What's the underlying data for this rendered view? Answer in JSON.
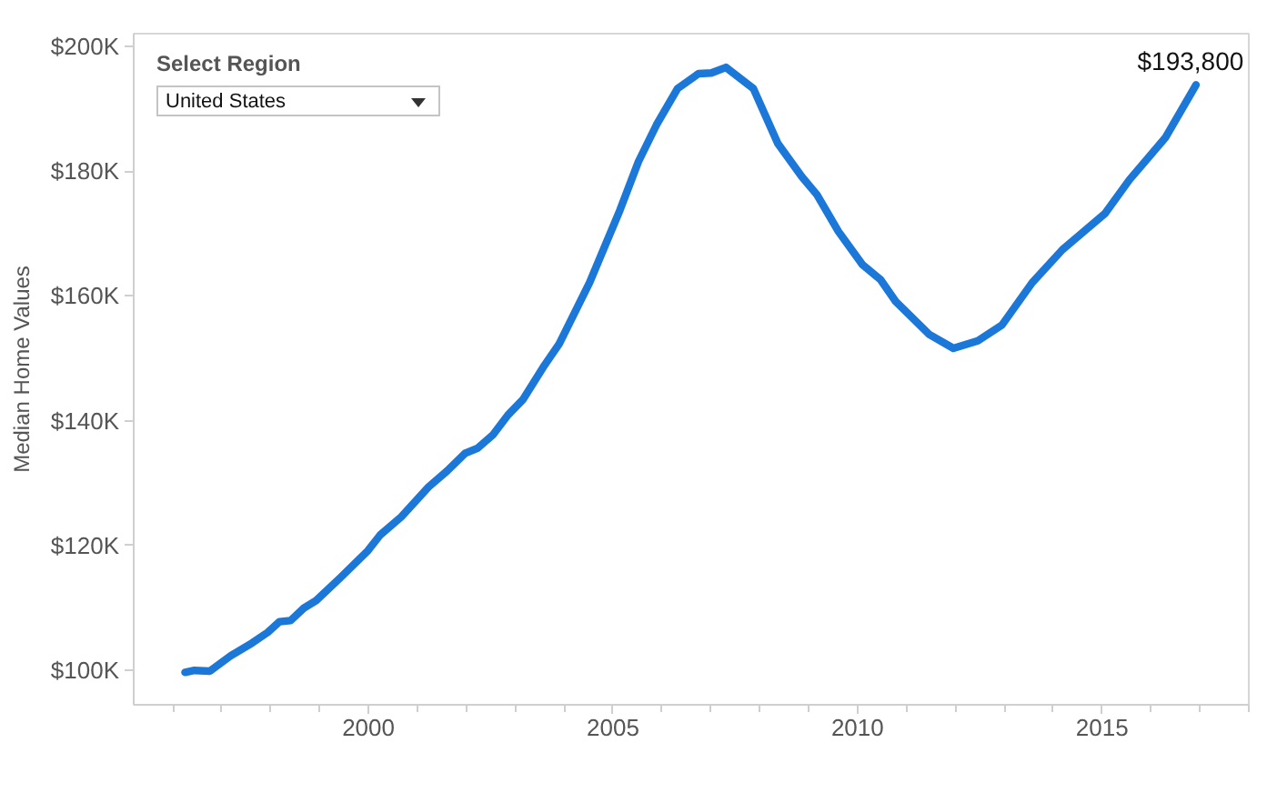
{
  "chart_data": {
    "type": "line",
    "ylabel": "Median Home Values",
    "x": [
      1996.25,
      1996.44,
      1996.76,
      1997.19,
      1997.62,
      1997.94,
      1998.18,
      1998.41,
      1998.68,
      1998.93,
      1999.43,
      1999.99,
      2000.24,
      2000.67,
      2001.23,
      2001.6,
      2001.98,
      2002.23,
      2002.54,
      2002.85,
      2003.16,
      2003.6,
      2003.9,
      2004.52,
      2005.14,
      2005.52,
      2005.89,
      2006.32,
      2006.75,
      2007.01,
      2007.31,
      2007.87,
      2008.37,
      2008.86,
      2009.17,
      2009.61,
      2010.1,
      2010.47,
      2010.78,
      2011.47,
      2011.96,
      2012.46,
      2012.95,
      2013.57,
      2014.19,
      2015.06,
      2015.56,
      2016.3,
      2016.92
    ],
    "values": [
      99700,
      100000,
      99900,
      102400,
      104400,
      106100,
      107800,
      108000,
      110000,
      111200,
      114900,
      119200,
      121700,
      124600,
      129400,
      131900,
      134800,
      135600,
      137700,
      140900,
      143400,
      148900,
      152300,
      162100,
      173700,
      181500,
      187400,
      193200,
      195600,
      195700,
      196600,
      193200,
      184400,
      179100,
      176200,
      170300,
      165000,
      162600,
      159100,
      153800,
      151600,
      152800,
      155300,
      162100,
      167400,
      173200,
      178600,
      185400,
      193800
    ],
    "value_labels": [
      null,
      null,
      null,
      null,
      null,
      null,
      null,
      null,
      null,
      null,
      null,
      null,
      null,
      null,
      null,
      null,
      null,
      null,
      null,
      null,
      null,
      null,
      null,
      null,
      null,
      null,
      null,
      null,
      null,
      null,
      null,
      null,
      null,
      null,
      null,
      null,
      null,
      null,
      null,
      null,
      null,
      null,
      null,
      null,
      null,
      null,
      null,
      null,
      "$193,800"
    ],
    "color": "#1b78d8",
    "xlim": [
      1995.2,
      2018
    ],
    "xticks": [
      {
        "value": 1996,
        "label": null
      },
      {
        "value": 1997,
        "label": null
      },
      {
        "value": 1998,
        "label": null
      },
      {
        "value": 1999,
        "label": null
      },
      2000,
      {
        "value": 2001,
        "label": null
      },
      {
        "value": 2002,
        "label": null
      },
      {
        "value": 2003,
        "label": null
      },
      {
        "value": 2004,
        "label": null
      },
      2005,
      {
        "value": 2006,
        "label": null
      },
      {
        "value": 2007,
        "label": null
      },
      {
        "value": 2008,
        "label": null
      },
      {
        "value": 2009,
        "label": null
      },
      2010,
      {
        "value": 2011,
        "label": null
      },
      {
        "value": 2012,
        "label": null
      },
      {
        "value": 2013,
        "label": null
      },
      {
        "value": 2014,
        "label": null
      },
      2015,
      {
        "value": 2016,
        "label": null
      },
      {
        "value": 2017,
        "label": null
      },
      {
        "value": 2018,
        "label": null
      }
    ],
    "ylim": [
      94500,
      202000
    ],
    "yticks": [
      {
        "value": 100000,
        "label": "$100K"
      },
      {
        "value": 120000,
        "label": "$120K"
      },
      {
        "value": 140000,
        "label": "$140K"
      },
      {
        "value": 160000,
        "label": "$160K"
      },
      {
        "value": 180000,
        "label": "$180K"
      },
      {
        "value": 200000,
        "label": "$200K"
      }
    ],
    "annotations": [
      "Select Region",
      "United States"
    ]
  }
}
